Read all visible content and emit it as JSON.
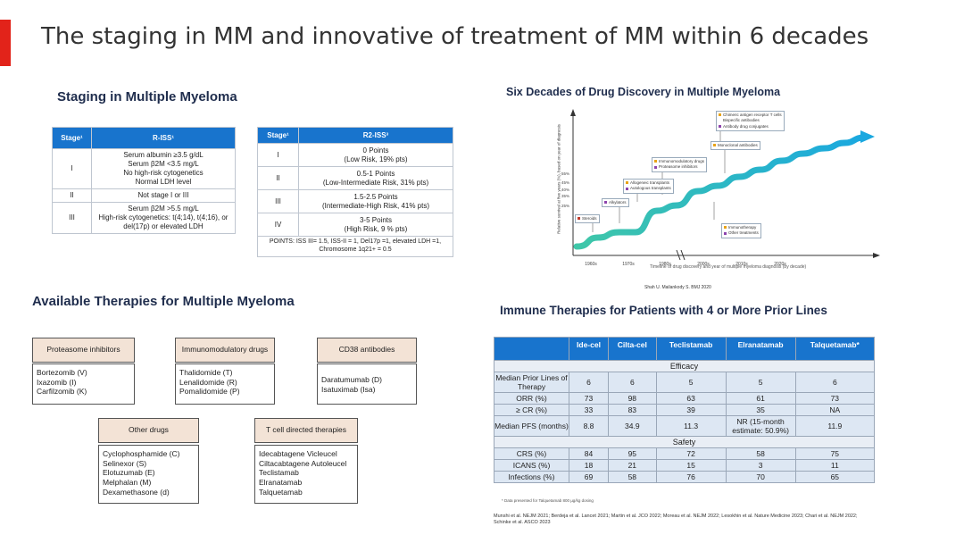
{
  "title": "The staging in MM and innovative of treatment of MM within 6 decades",
  "staging": {
    "title": "Staging in Multiple Myeloma",
    "riss": {
      "headers": [
        "Stage¹",
        "R-ISS¹"
      ],
      "rows": [
        {
          "stage": "I",
          "lines": [
            "Serum albumin ≥3.5 g/dL",
            "Serum β2M <3.5 mg/L",
            "No high-risk cytogenetics",
            "Normal LDH level"
          ]
        },
        {
          "stage": "II",
          "lines": [
            "Not stage I or III"
          ]
        },
        {
          "stage": "III",
          "lines": [
            "Serum β2M >5.5 mg/L",
            "High-risk cytogenetics: t(4;14), t(4;16), or",
            "del(17p) or elevated LDH"
          ]
        }
      ]
    },
    "r2iss": {
      "headers": [
        "Stage¹",
        "R2-ISS³"
      ],
      "rows": [
        {
          "stage": "I",
          "lines": [
            "0 Points",
            "(Low Risk, 19% pts)"
          ]
        },
        {
          "stage": "II",
          "lines": [
            "0.5-1 Points",
            "(Low-Intermediate Risk, 31% pts)"
          ]
        },
        {
          "stage": "III",
          "lines": [
            "1.5-2.5 Points",
            "(Intermediate-High Risk, 41% pts)"
          ]
        },
        {
          "stage": "IV",
          "lines": [
            "3-5 Points",
            "(High Risk, 9 % pts)"
          ]
        }
      ],
      "points_line1": "POINTS: ISS III= 1.5, ISS-II = 1, Del17p =1, elevated LDH =1,",
      "points_line2": "Chromosome 1q21+ = 0.5"
    }
  },
  "chart": {
    "title": "Six Decades of Drug Discovery in Multiple Myeloma",
    "ylabel": "Relative survival at five years (%), based on year of diagnosis",
    "xlabel": "Timeline of drug discovery and year of multiple myeloma diagnosis (by decade)",
    "source": "Shah U. Mailankody S. BMJ 2020",
    "annotations": {
      "steroids": "Steroids",
      "alkylators": "Alkylators",
      "allo": "Allogeneic transplants",
      "auto": "Autologous transplants",
      "imids": "Immunomodulatory drugs",
      "pi": "Proteasome inhibitors",
      "mabs": "Monoclonal antibodies",
      "cart": "Chimeric antigen receptor T cells",
      "bispec": "Bispecific antibodies",
      "adc": "Antibody drug conjugates",
      "immuno": "Immunotherapy",
      "other": "Other treatments"
    },
    "colors": {
      "red": "#c0392b",
      "orange": "#e8a317",
      "purple": "#8e44ad",
      "curve": "#1fb5d9"
    }
  },
  "chart_data": {
    "type": "line",
    "title": "Six Decades of Drug Discovery in Multiple Myeloma",
    "xlabel": "Timeline of drug discovery and year of multiple myeloma diagnosis (by decade)",
    "ylabel": "Relative survival at five years (%), based on year of diagnosis",
    "categories": [
      "1960s",
      "1970s",
      "1980s",
      "2000s",
      "2010s",
      "2020s"
    ],
    "y_ticks": [
      "25%",
      "35%",
      "40%",
      "45%",
      "55%"
    ],
    "series": [
      {
        "name": "Relative survival",
        "values": [
          10,
          22,
          30,
          40,
          52,
          62
        ]
      }
    ],
    "ylim": [
      0,
      70
    ]
  },
  "therapies": {
    "title": "Available Therapies for Multiple Myeloma",
    "groups": [
      {
        "head": "Proteasome inhibitors",
        "items": [
          "Bortezomib (V)",
          "Ixazomib (I)",
          "Carfilzomib (K)"
        ]
      },
      {
        "head": "Immunomodulatory drugs",
        "items": [
          "Thalidomide (T)",
          "Lenalidomide (R)",
          "Pomalidomide (P)"
        ]
      },
      {
        "head": "CD38 antibodies",
        "items": [
          "Daratumumab (D)",
          "Isatuximab (Isa)"
        ]
      },
      {
        "head": "Other drugs",
        "items": [
          "Cyclophosphamide (C)",
          "Selinexor (S)",
          "Elotuzumab (E)",
          "Melphalan (M)",
          "Dexamethasone (d)"
        ]
      },
      {
        "head": "T cell directed therapies",
        "items": [
          "Idecabtagene Vicleucel",
          "Ciltacabtagene Autoleucel",
          "Teclistamab",
          "Elranatamab",
          "Talquetamab"
        ]
      }
    ]
  },
  "immune": {
    "title": "Immune Therapies for Patients with 4 or More Prior Lines",
    "headers": [
      "",
      "Ide-cel",
      "Cilta-cel",
      "Teclistamab",
      "Elranatamab",
      "Talquetamab*"
    ],
    "efficacy_label": "Efficacy",
    "safety_label": "Safety",
    "efficacy_rows": [
      {
        "label": "Median Prior Lines of Therapy",
        "values": [
          "6",
          "6",
          "5",
          "5",
          "6"
        ]
      },
      {
        "label": "ORR (%)",
        "values": [
          "73",
          "98",
          "63",
          "61",
          "73"
        ]
      },
      {
        "label": "≥ CR (%)",
        "values": [
          "33",
          "83",
          "39",
          "35",
          "NA"
        ]
      },
      {
        "label": "Median PFS (months)",
        "values": [
          "8.8",
          "34.9",
          "11.3",
          "NR (15-month estimate: 50.9%)",
          "11.9"
        ]
      }
    ],
    "safety_rows": [
      {
        "label": "CRS (%)",
        "values": [
          "84",
          "95",
          "72",
          "58",
          "75"
        ]
      },
      {
        "label": "ICANS (%)",
        "values": [
          "18",
          "21",
          "15",
          "3",
          "11"
        ]
      },
      {
        "label": "Infections (%)",
        "values": [
          "69",
          "58",
          "76",
          "70",
          "65"
        ]
      }
    ],
    "footnote": "* Data presented for Talquetamab 800 µg/kg dosing",
    "refs": "Munshi et al. NEJM 2021; Berdeja et al. Lancet 2021; Martin et al. JCO 2022; Moreau et al. NEJM 2022; Lesokhin et al. Nature Medicine 2023; Chari et al. NEJM 2022; Schinke et al. ASCO 2023"
  }
}
